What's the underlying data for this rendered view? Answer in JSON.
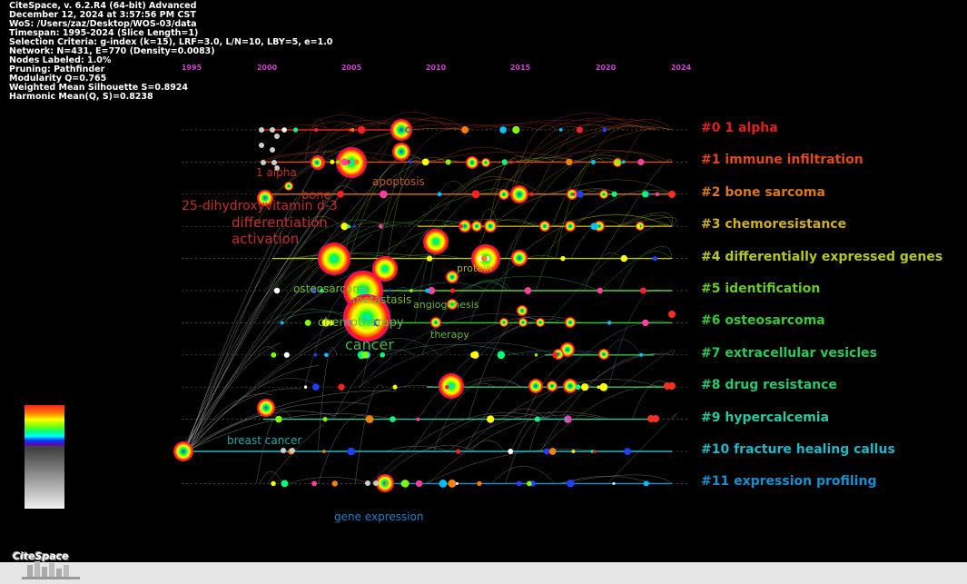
{
  "info": {
    "lines": [
      "CiteSpace, v. 6.2.R4 (64-bit) Advanced",
      "December 12, 2024 at 3:57:56 PM CST",
      "WoS: /Users/zaz/Desktop/WOS-03/data",
      "Timespan: 1995-2024 (Slice Length=1)",
      "Selection Criteria: g-index (k=15), LRF=3.0, L/N=10, LBY=5, e=1.0",
      "Network: N=431, E=770 (Density=0.0083)",
      "Nodes Labeled: 1.0%",
      "Pruning: Pathfinder",
      "Modularity Q=0.765",
      "Weighted Mean Silhouette S=0.8924",
      "Harmonic Mean(Q, S)=0.8238"
    ]
  },
  "timeline": {
    "years": [
      "1995",
      "2000",
      "2005",
      "2010",
      "2015",
      "2020",
      "2024"
    ],
    "year_color": "#d040d0"
  },
  "clusters": [
    {
      "label": "#0 1 alpha",
      "color": "#e0201c"
    },
    {
      "label": "#1 immune infiltration",
      "color": "#e04a18"
    },
    {
      "label": "#2 bone sarcoma",
      "color": "#d87818"
    },
    {
      "label": "#3 chemoresistance",
      "color": "#d0b018"
    },
    {
      "label": "#4 differentially expressed genes",
      "color": "#b8c818"
    },
    {
      "label": "#5 identification",
      "color": "#68c828"
    },
    {
      "label": "#6 osteosarcoma",
      "color": "#38c838"
    },
    {
      "label": "#7 extracellular vesicles",
      "color": "#28c858"
    },
    {
      "label": "#8 drug resistance",
      "color": "#28c870"
    },
    {
      "label": "#9 hypercalcemia",
      "color": "#28c8a0"
    },
    {
      "label": "#10 fracture healing callus",
      "color": "#20b8c8"
    },
    {
      "label": "#11 expression profiling",
      "color": "#1890d0"
    }
  ],
  "node_labels": [
    {
      "text": "1 alpha",
      "color": "#c0302a"
    },
    {
      "text": "bone",
      "color": "#c0302a"
    },
    {
      "text": "25-dihydroxyvitamin d-3",
      "color": "#c0302a"
    },
    {
      "text": "differentiation",
      "color": "#c0302a"
    },
    {
      "text": "activation",
      "color": "#c0302a"
    },
    {
      "text": "apoptosis",
      "color": "#c05a2a"
    },
    {
      "text": "protein",
      "color": "#a8b020"
    },
    {
      "text": "osteosarcoma",
      "color": "#70b830"
    },
    {
      "text": "metastasis",
      "color": "#70b830"
    },
    {
      "text": "angiogenesis",
      "color": "#70b830"
    },
    {
      "text": "chemotherapy",
      "color": "#60b838"
    },
    {
      "text": "therapy",
      "color": "#60b838"
    },
    {
      "text": "cancer",
      "color": "#48b848"
    },
    {
      "text": "breast cancer",
      "color": "#28a8a8"
    },
    {
      "text": "gene expression",
      "color": "#2080c8"
    }
  ],
  "logo": {
    "text": "CiteSpace"
  }
}
